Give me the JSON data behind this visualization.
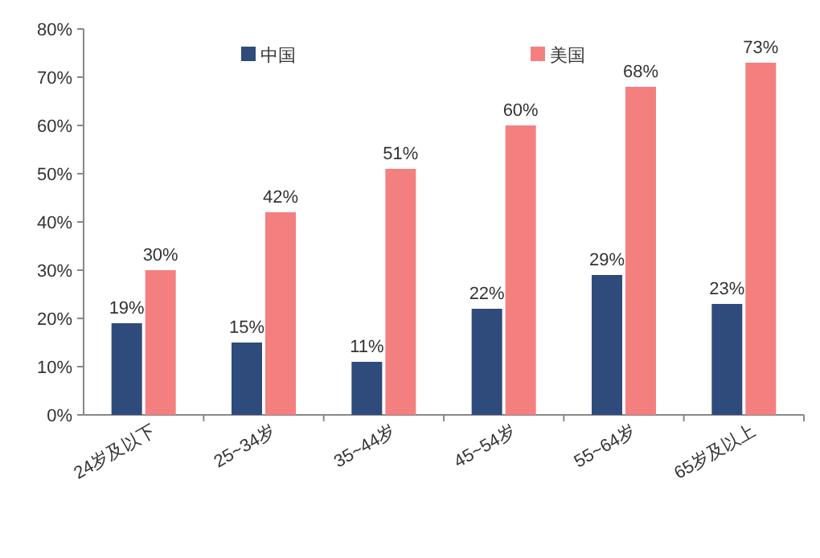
{
  "chart_data": {
    "type": "bar",
    "categories": [
      "24岁及以下",
      "25~34岁",
      "35~44岁",
      "45~54岁",
      "55~64岁",
      "65岁及以上"
    ],
    "series": [
      {
        "name": "中国",
        "color": "#2f4b7c",
        "values": [
          19,
          15,
          11,
          22,
          29,
          23
        ],
        "value_labels": [
          "19%",
          "15%",
          "11%",
          "22%",
          "29%",
          "23%"
        ]
      },
      {
        "name": "美国",
        "color": "#f47f7f",
        "values": [
          30,
          42,
          51,
          60,
          68,
          73
        ],
        "value_labels": [
          "30%",
          "42%",
          "51%",
          "60%",
          "68%",
          "73%"
        ]
      }
    ],
    "ylim": [
      0,
      80
    ],
    "yticks": [
      {
        "value": 0,
        "label": "0%"
      },
      {
        "value": 10,
        "label": "10%"
      },
      {
        "value": 20,
        "label": "20%"
      },
      {
        "value": 30,
        "label": "30%"
      },
      {
        "value": 40,
        "label": "40%"
      },
      {
        "value": 50,
        "label": "50%"
      },
      {
        "value": 60,
        "label": "60%"
      },
      {
        "value": 70,
        "label": "70%"
      },
      {
        "value": 80,
        "label": "80%"
      }
    ],
    "grid": false,
    "legend": "top"
  }
}
